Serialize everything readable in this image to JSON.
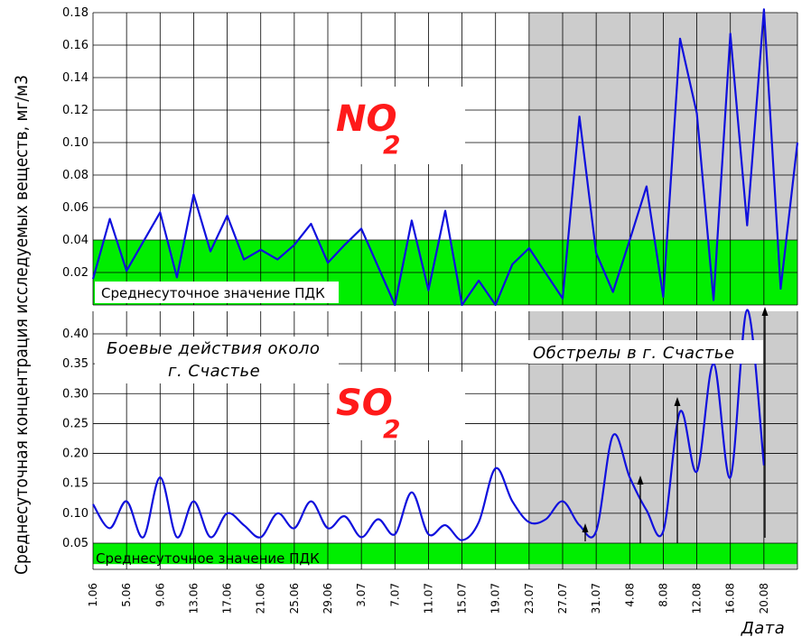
{
  "chart_data": {
    "type": "line",
    "ylabel": "Среднесуточная концентрация исследуемых веществ, мг/м3",
    "xlabel": "Дата",
    "x_ticks": [
      "1.06",
      "5.06",
      "9.06",
      "13.06",
      "17.06",
      "21.06",
      "25.06",
      "29.06",
      "3.07",
      "7.07",
      "11.07",
      "15.07",
      "19.07",
      "23.07",
      "27.07",
      "31.07",
      "4.08",
      "8.08",
      "12.08",
      "16.08",
      "20.08"
    ],
    "colors": {
      "line": "#1010dd",
      "pdk_band": "#00ee00",
      "shelling_zone": "#cccccc",
      "chem": "#ff1a1a"
    },
    "annotations": {
      "fighting": [
        "Боевые действия около",
        "г. Счастье"
      ],
      "shelling": "Обстрелы в г. Счастье"
    },
    "panels": [
      {
        "name": "NO",
        "name_sub": "2",
        "yticks": [
          "0.02",
          "0.04",
          "0.06",
          "0.08",
          "0.10",
          "0.12",
          "0.14",
          "0.16",
          "0.18"
        ],
        "ylim": [
          0,
          0.18
        ],
        "pdk_label": "Среднесуточное значение ПДК",
        "pdk_band": [
          0,
          0.04
        ],
        "x": [
          0,
          1,
          2,
          4,
          5,
          6,
          7,
          8,
          9,
          10,
          11,
          12,
          13,
          14,
          15,
          16,
          18,
          19,
          20,
          21,
          22,
          23,
          24,
          25,
          26,
          28,
          29,
          30,
          31,
          32,
          33,
          34,
          35,
          36,
          37,
          38,
          39,
          40,
          41,
          42
        ],
        "values": [
          0.016,
          0.053,
          0.021,
          0.057,
          0.017,
          0.068,
          0.033,
          0.055,
          0.028,
          0.034,
          0.028,
          0.037,
          0.05,
          0.026,
          0.037,
          0.047,
          0.0,
          0.052,
          0.009,
          0.058,
          0.0,
          0.015,
          0.0,
          0.025,
          0.035,
          0.004,
          0.116,
          0.032,
          0.008,
          0.04,
          0.073,
          0.005,
          0.164,
          0.118,
          0.003,
          0.167,
          0.049,
          0.182,
          0.01,
          0.1
        ]
      },
      {
        "name": "SO",
        "name_sub": "2",
        "yticks": [
          "0.05",
          "0.10",
          "0.15",
          "0.20",
          "0.25",
          "0.30",
          "0.35",
          "0.40"
        ],
        "ylim": [
          0.05,
          0.42
        ],
        "pdk_label": "Среднесуточное значение ПДК",
        "pdk_band": [
          0.015,
          0.05
        ],
        "x": [
          0,
          1,
          2,
          3,
          4,
          5,
          6,
          7,
          8,
          9,
          10,
          11,
          12,
          13,
          14,
          15,
          16,
          17,
          18,
          19,
          20,
          21,
          22,
          23,
          24,
          25,
          26,
          27,
          28,
          29,
          30,
          31,
          32,
          33,
          34,
          35,
          36,
          37,
          38,
          39,
          40,
          41,
          42
        ],
        "values": [
          0.115,
          0.075,
          0.12,
          0.06,
          0.16,
          0.06,
          0.12,
          0.06,
          0.1,
          0.08,
          0.06,
          0.1,
          0.075,
          0.12,
          0.075,
          0.095,
          0.06,
          0.09,
          0.065,
          0.135,
          0.065,
          0.08,
          0.055,
          0.085,
          0.175,
          0.12,
          0.085,
          0.09,
          0.12,
          0.08,
          0.07,
          0.23,
          0.16,
          0.105,
          0.07,
          0.27,
          0.17,
          0.35,
          0.16,
          0.44,
          0.18,
          0.18,
          0.18
        ],
        "arrow_dates": [
          "27.07",
          "31.07",
          "4.08",
          "16.08"
        ]
      }
    ]
  }
}
